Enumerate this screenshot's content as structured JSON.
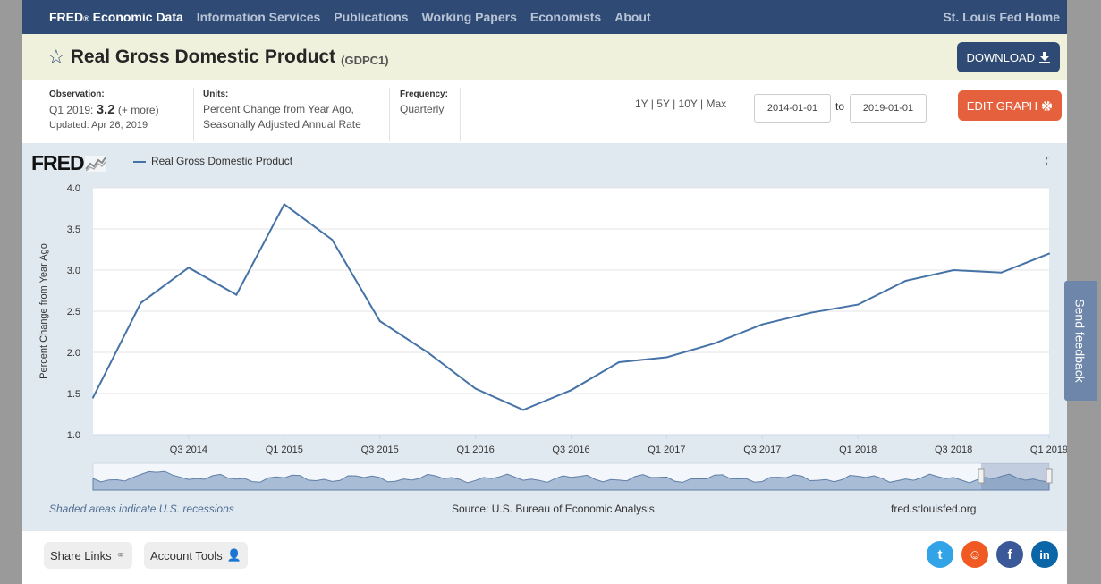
{
  "nav": {
    "brand": "FRED",
    "brand_mark": "®",
    "brand_suffix": " Economic Data",
    "items": [
      "Information Services",
      "Publications",
      "Working Papers",
      "Economists",
      "About"
    ],
    "home": "St. Louis Fed Home"
  },
  "header": {
    "title": "Real Gross Domestic Product",
    "code": "(GDPC1)",
    "download_label": "DOWNLOAD"
  },
  "meta": {
    "observation_label": "Observation:",
    "observation_period": "Q1 2019:",
    "observation_value": "3.2",
    "observation_more": "(+ more)",
    "updated": "Updated: Apr 26, 2019",
    "units_label": "Units:",
    "units_line1": "Percent Change from Year Ago,",
    "units_line2": "Seasonally Adjusted Annual Rate",
    "frequency_label": "Frequency:",
    "frequency": "Quarterly"
  },
  "controls": {
    "ranges": [
      "1Y",
      "5Y",
      "10Y",
      "Max"
    ],
    "start_date": "2014-01-01",
    "to_label": "to",
    "end_date": "2019-01-01",
    "edit_label": "EDIT GRAPH"
  },
  "graph": {
    "logo": "FRED",
    "note": "Shaded areas indicate U.S. recessions",
    "source": "Source: U.S. Bureau of Economic Analysis",
    "site": "fred.stlouisfed.org"
  },
  "chart_data": {
    "type": "line",
    "title": "",
    "ylabel": "Percent Change from Year Ago",
    "xlabel": "",
    "ylim": [
      1.0,
      4.0
    ],
    "yticks": [
      "1.0",
      "1.5",
      "2.0",
      "2.5",
      "3.0",
      "3.5",
      "4.0"
    ],
    "xtick_labels": [
      "Q3 2014",
      "Q1 2015",
      "Q3 2015",
      "Q1 2016",
      "Q3 2016",
      "Q1 2017",
      "Q3 2017",
      "Q1 2018",
      "Q3 2018",
      "Q1 2019"
    ],
    "x": [
      "Q1 2014",
      "Q2 2014",
      "Q3 2014",
      "Q4 2014",
      "Q1 2015",
      "Q2 2015",
      "Q3 2015",
      "Q4 2015",
      "Q1 2016",
      "Q2 2016",
      "Q3 2016",
      "Q4 2016",
      "Q1 2017",
      "Q2 2017",
      "Q3 2017",
      "Q4 2017",
      "Q1 2018",
      "Q2 2018",
      "Q3 2018",
      "Q4 2018",
      "Q1 2019"
    ],
    "series": [
      {
        "name": "Real Gross Domestic Product",
        "color": "#4572a7",
        "values": [
          1.45,
          2.6,
          3.03,
          2.7,
          3.8,
          3.37,
          2.38,
          2.0,
          1.56,
          1.3,
          1.54,
          1.88,
          1.94,
          2.11,
          2.34,
          2.48,
          2.58,
          2.87,
          3.0,
          2.97,
          3.2
        ]
      }
    ],
    "grid": true,
    "legend": "top-left"
  },
  "bottom": {
    "share_label": "Share Links",
    "account_label": "Account Tools"
  },
  "feedback_label": "Send feedback"
}
